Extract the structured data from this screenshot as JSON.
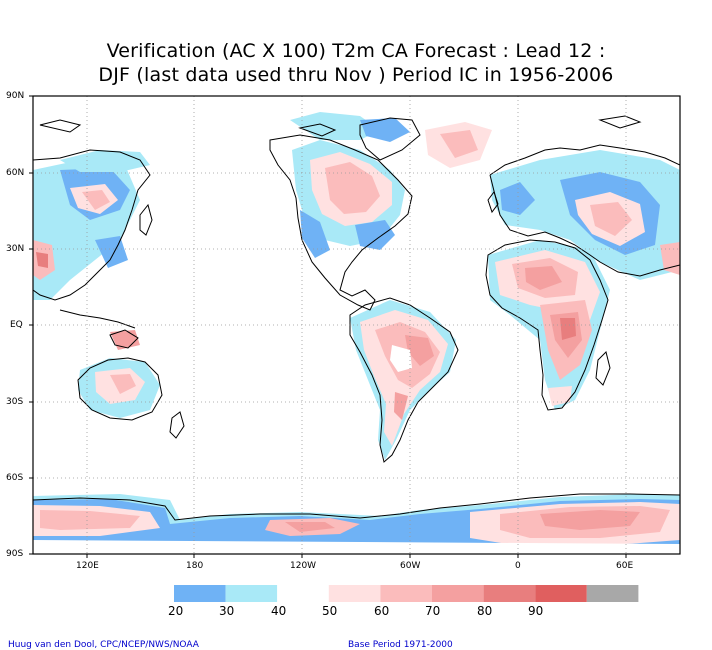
{
  "title": {
    "line1": "Verification (AC X 100) T2m CA Forecast : Lead 12 :",
    "line2": "DJF (last data used thru Nov ) Period IC in 1956-2006"
  },
  "map": {
    "lat_labels": [
      "90N",
      "60N",
      "30N",
      "EQ",
      "30S",
      "60S",
      "90S"
    ],
    "lon_labels": [
      "120E",
      "180",
      "120W",
      "60W",
      "0",
      "60E"
    ]
  },
  "legend": {
    "labels": [
      "20",
      "30",
      "40",
      "50",
      "60",
      "70",
      "80",
      "90"
    ],
    "colors": [
      "#6fb2f5",
      "#a9e9f7",
      "#ffffff",
      "#ffe1e1",
      "#fbbcbc",
      "#f4a0a0",
      "#e87e7e",
      "#e05f5f",
      "#a8a8a8"
    ]
  },
  "footer": {
    "left": "Huug van den Dool, CPC/NCEP/NWS/NOAA",
    "right": "Base Period 1971-2000"
  }
}
